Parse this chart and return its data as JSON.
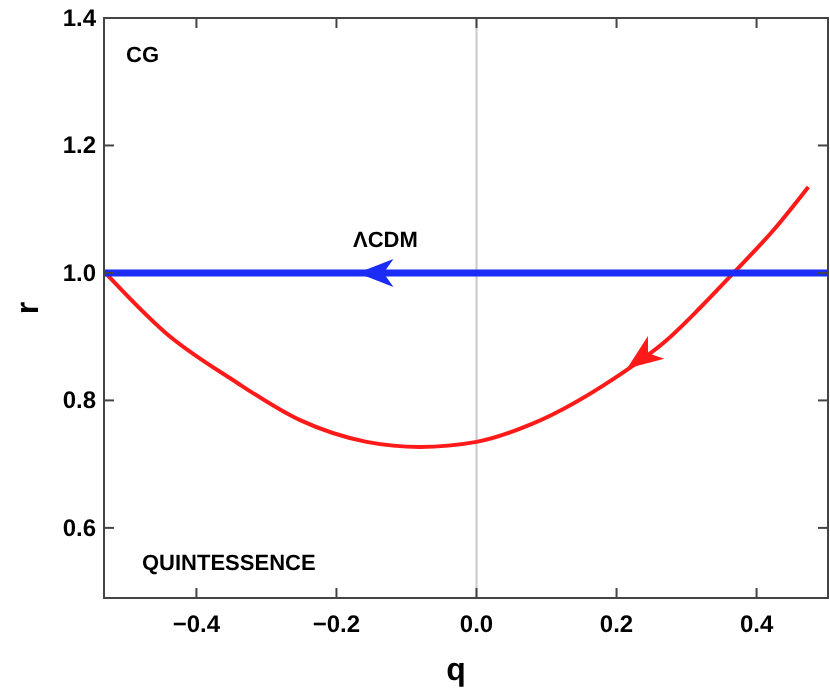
{
  "chart_data": {
    "type": "line",
    "xlabel": "q",
    "ylabel": "r",
    "xlim": [
      -0.532,
      0.502
    ],
    "ylim": [
      0.49,
      1.4
    ],
    "xticks": [
      {
        "value": -0.4,
        "label": "−0.4"
      },
      {
        "value": -0.2,
        "label": "−0.2"
      },
      {
        "value": 0,
        "label": "0.0"
      },
      {
        "value": 0.2,
        "label": "0.2"
      },
      {
        "value": 0.4,
        "label": "0.4"
      }
    ],
    "yticks": [
      {
        "value": 0.6,
        "label": "0.6"
      },
      {
        "value": 0.8,
        "label": "0.8"
      },
      {
        "value": 1,
        "label": "1.0"
      },
      {
        "value": 1.2,
        "label": "1.2"
      },
      {
        "value": 1.4,
        "label": "1.4"
      }
    ],
    "grid": false,
    "marker": "none",
    "line_style": "solid",
    "series": [
      {
        "color": "#ff1a1a",
        "x": [
          -0.53,
          -0.443,
          -0.348,
          -0.252,
          -0.157,
          -0.081,
          0,
          0.081,
          0.2,
          0.271,
          0.319,
          0.367,
          0.424,
          0.474
        ],
        "values": [
          1.0,
          0.905,
          0.832,
          0.769,
          0.735,
          0.727,
          0.735,
          0.764,
          0.837,
          0.894,
          0.945,
          1.0,
          1.067,
          1.135
        ]
      },
      {
        "color": "#1a2cf5",
        "x": [
          -0.532,
          0.502
        ],
        "values": [
          1.0,
          1.0
        ]
      }
    ],
    "ref_lines": [
      {
        "axis": "x",
        "value": 0,
        "color": "#c8c8c8"
      }
    ],
    "annotations": [
      "CG",
      "QUINTESSENCE",
      "ΛCDM"
    ]
  }
}
